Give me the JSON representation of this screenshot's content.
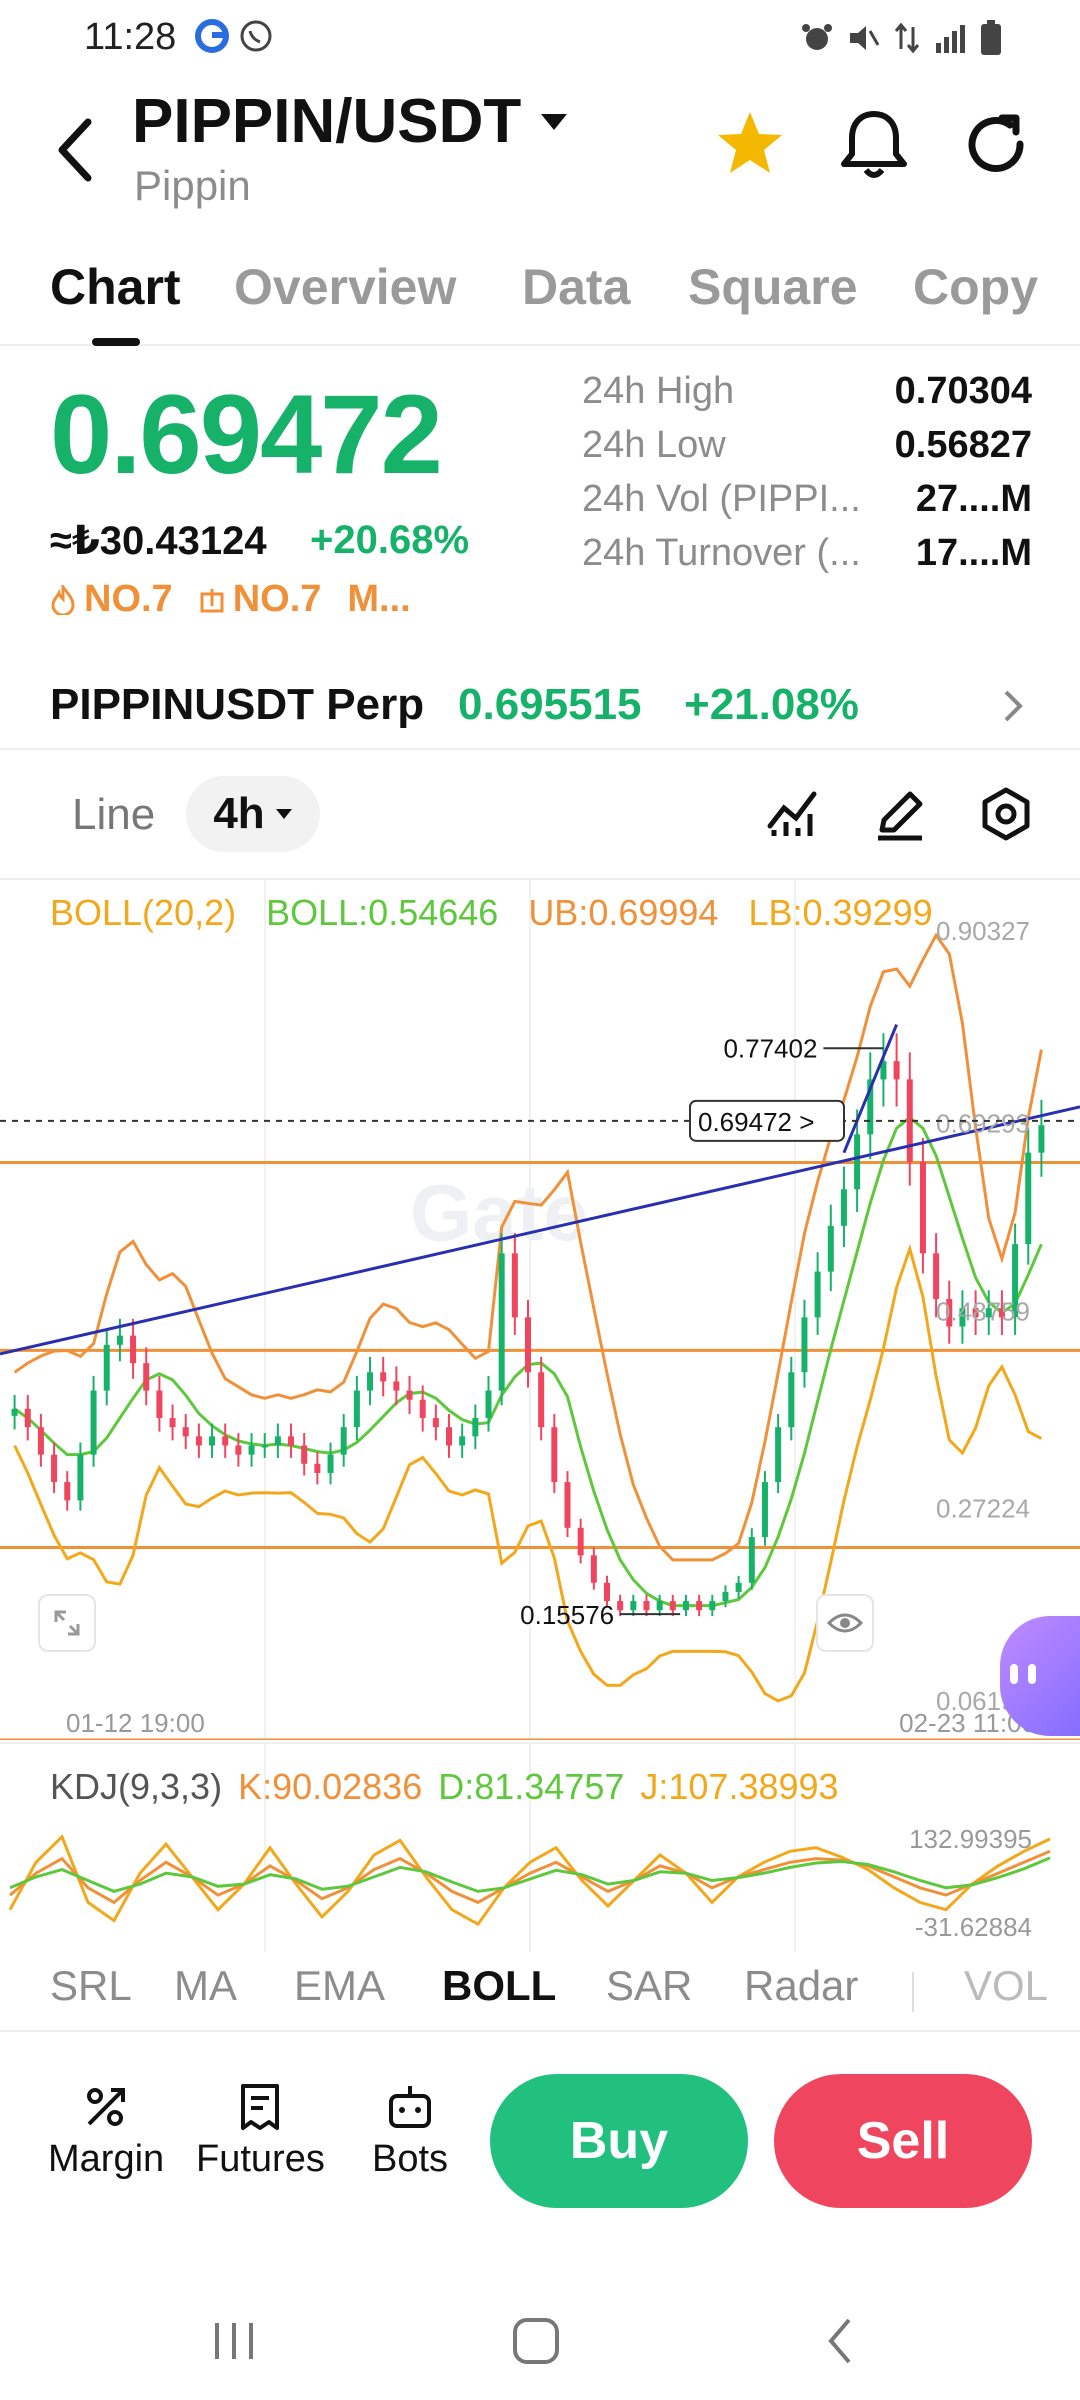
{
  "status_bar": {
    "time": "11:28",
    "left_icons": [
      "g-app-icon",
      "whatsapp-icon"
    ],
    "right_icons": [
      "alarm-icon",
      "mute-icon",
      "data-arrows-icon",
      "signal-icon",
      "battery-icon"
    ]
  },
  "header": {
    "pair": "PIPPIN/USDT",
    "subtitle": "Pippin",
    "favorite_color": "#f5b800"
  },
  "tabs": [
    "Chart",
    "Overview",
    "Data",
    "Square",
    "Copy"
  ],
  "active_tab": "Chart",
  "ticker": {
    "last_price": "0.69472",
    "fiat_price": "≈₺30.43124",
    "change_pct": "+20.68%",
    "rank1": "NO.7",
    "rank2": "NO.7",
    "rank3": "M...",
    "stats": [
      {
        "label": "24h  High",
        "value": "0.70304"
      },
      {
        "label": "24h  Low",
        "value": "0.56827"
      },
      {
        "label": "24h  Vol (PIPPI...",
        "value": "27....M"
      },
      {
        "label": "24h  Turnover (...",
        "value": "17....M"
      }
    ]
  },
  "perp": {
    "name": "PIPPINUSDT Perp",
    "price": "0.695515",
    "change": "+21.08%"
  },
  "toolbar": {
    "line_label": "Line",
    "interval": "4h"
  },
  "chart_data": {
    "type": "candlestick",
    "indicator": {
      "name": "BOLL(20,2)",
      "boll": "BOLL:0.54646",
      "ub": "UB:0.69994",
      "lb": "LB:0.39299"
    },
    "y_ticks": [
      "0.90327",
      "0.69293",
      "0.48759",
      "0.27224",
      "0.06190"
    ],
    "y_range": [
      0.0619,
      0.90327
    ],
    "x_labels": [
      "01-12 19:00",
      "02-23 11:00"
    ],
    "annotations": {
      "high": "0.77402",
      "low": "0.15576",
      "current": "0.69472"
    },
    "watermark": "Gate",
    "close_series": [
      0.38,
      0.36,
      0.33,
      0.3,
      0.28,
      0.33,
      0.4,
      0.45,
      0.46,
      0.43,
      0.4,
      0.37,
      0.36,
      0.35,
      0.34,
      0.35,
      0.34,
      0.33,
      0.34,
      0.34,
      0.35,
      0.34,
      0.32,
      0.31,
      0.33,
      0.36,
      0.4,
      0.42,
      0.41,
      0.4,
      0.39,
      0.37,
      0.36,
      0.34,
      0.35,
      0.37,
      0.4,
      0.55,
      0.48,
      0.42,
      0.36,
      0.3,
      0.25,
      0.22,
      0.19,
      0.17,
      0.16,
      0.17,
      0.16,
      0.17,
      0.16,
      0.17,
      0.16,
      0.17,
      0.18,
      0.19,
      0.24,
      0.3,
      0.36,
      0.42,
      0.48,
      0.53,
      0.58,
      0.62,
      0.68,
      0.74,
      0.76,
      0.74,
      0.65,
      0.55,
      0.5,
      0.47,
      0.49,
      0.48,
      0.49,
      0.48,
      0.56,
      0.66,
      0.69
    ]
  },
  "kdj": {
    "name": "KDJ(9,3,3)",
    "k": "K:90.02836",
    "d": "D:81.34757",
    "j": "J:107.38993",
    "y_top": "132.99395",
    "y_bottom": "-31.62884",
    "k_series": [
      30,
      60,
      80,
      40,
      20,
      50,
      75,
      55,
      30,
      45,
      70,
      50,
      25,
      40,
      65,
      80,
      60,
      35,
      20,
      40,
      60,
      75,
      55,
      35,
      50,
      70,
      60,
      40,
      55,
      65,
      75,
      80,
      78,
      70,
      55,
      40,
      30,
      45,
      60,
      75,
      90
    ],
    "d_series": [
      40,
      55,
      65,
      50,
      35,
      45,
      60,
      55,
      42,
      45,
      58,
      52,
      38,
      42,
      55,
      68,
      62,
      48,
      35,
      40,
      52,
      64,
      58,
      45,
      50,
      62,
      60,
      50,
      54,
      60,
      68,
      74,
      76,
      72,
      62,
      50,
      40,
      44,
      54,
      66,
      81
    ],
    "j_series": [
      10,
      75,
      110,
      20,
      -5,
      60,
      100,
      55,
      10,
      45,
      95,
      45,
      0,
      35,
      85,
      105,
      55,
      10,
      -10,
      40,
      75,
      95,
      50,
      15,
      50,
      85,
      60,
      20,
      55,
      75,
      90,
      95,
      82,
      65,
      40,
      20,
      10,
      45,
      70,
      90,
      107
    ]
  },
  "indicator_tabs": [
    "SRL",
    "MA",
    "EMA",
    "BOLL",
    "SAR",
    "Radar",
    "VOL"
  ],
  "active_indicator": "BOLL",
  "actions": {
    "margin": "Margin",
    "futures": "Futures",
    "bots": "Bots",
    "buy": "Buy",
    "sell": "Sell"
  },
  "colors": {
    "green": "#17b26a",
    "red": "#f0455e",
    "orange": "#f0913a",
    "boll_mid": "#5ec83c",
    "boll_band": "#f3a81b",
    "trend_line": "#2a2fb0"
  }
}
